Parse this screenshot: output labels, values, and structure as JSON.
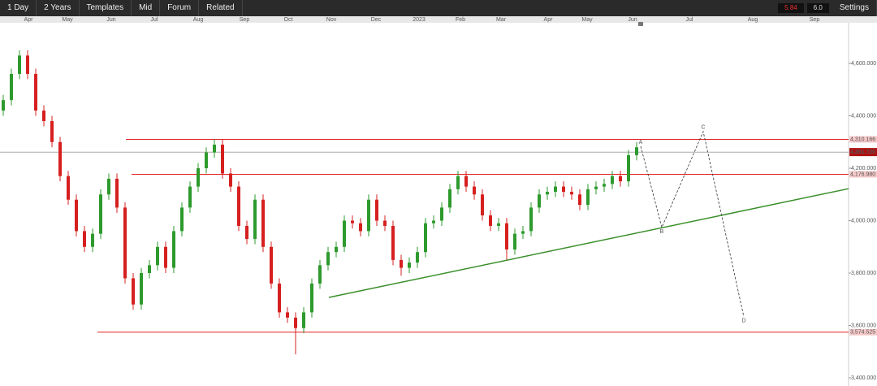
{
  "toolbar": {
    "buttons": [
      "1 Day",
      "2 Years",
      "Templates",
      "Mid",
      "Forum",
      "Related"
    ],
    "settings": "Settings",
    "readouts": [
      "5.84",
      "6.0"
    ]
  },
  "chart_data": {
    "type": "candlestick",
    "x_labels": [
      "Apr",
      "May",
      "Jun",
      "Jul",
      "Aug",
      "Sep",
      "Oct",
      "Nov",
      "Dec",
      "2023",
      "Feb",
      "Mar",
      "Apr",
      "May",
      "Jun",
      "Jul",
      "Aug",
      "Sep"
    ],
    "ylim": [
      3369,
      4780
    ],
    "yticks": [
      {
        "value": 3400,
        "label": "3,400.000"
      },
      {
        "value": 3600,
        "label": "3,600.000"
      },
      {
        "value": 3800,
        "label": "3,800.000"
      },
      {
        "value": 4000,
        "label": "4,000.000"
      },
      {
        "value": 4200,
        "label": "4,200.000"
      },
      {
        "value": 4400,
        "label": "4,400.000"
      },
      {
        "value": 4600,
        "label": "4,600.000"
      }
    ],
    "up_color": "#2e9a2e",
    "down_color": "#d62020",
    "open": [
      4420,
      4460,
      4560,
      4630,
      4560,
      4420,
      4380,
      4300,
      4170,
      4080,
      3960,
      3900,
      3950,
      4100,
      4160,
      4050,
      3780,
      3680,
      3800,
      3830,
      3900,
      3820,
      3960,
      4050,
      4130,
      4200,
      4260,
      4290,
      4180,
      4130,
      3980,
      3930,
      4080,
      3900,
      3760,
      3650,
      3630,
      3590,
      3650,
      3760,
      3830,
      3880,
      3900,
      4000,
      3990,
      3960,
      4080,
      4000,
      3980,
      3850,
      3820,
      3840,
      3880,
      3990,
      4000,
      4050,
      4120,
      4170,
      4130,
      4100,
      4020,
      3980,
      3990,
      3890,
      3950,
      3960,
      4050,
      4100,
      4110,
      4130,
      4110,
      4100,
      4060,
      4120,
      4130,
      4140,
      4170,
      4150,
      4250
    ],
    "high": [
      4480,
      4580,
      4650,
      4650,
      4580,
      4440,
      4400,
      4320,
      4190,
      4100,
      3980,
      3970,
      4120,
      4180,
      4180,
      4070,
      3800,
      3820,
      3850,
      3920,
      3920,
      3980,
      4070,
      4150,
      4220,
      4280,
      4310,
      4310,
      4200,
      4150,
      4000,
      4100,
      4100,
      3920,
      3780,
      3670,
      3650,
      3670,
      3780,
      3850,
      3900,
      3920,
      4020,
      4020,
      4010,
      4100,
      4100,
      4020,
      4000,
      3870,
      3860,
      3900,
      4010,
      4020,
      4070,
      4140,
      4190,
      4190,
      4150,
      4120,
      4040,
      4010,
      4010,
      3970,
      3980,
      4070,
      4120,
      4130,
      4150,
      4150,
      4130,
      4120,
      4140,
      4150,
      4160,
      4190,
      4190,
      4270,
      4300
    ],
    "low": [
      4400,
      4440,
      4540,
      4540,
      4400,
      4360,
      4280,
      4150,
      4060,
      3940,
      3880,
      3880,
      3930,
      4080,
      4030,
      3760,
      3660,
      3660,
      3780,
      3810,
      3800,
      3800,
      3940,
      4030,
      4110,
      4180,
      4240,
      4160,
      4110,
      3960,
      3910,
      3910,
      3880,
      3740,
      3630,
      3610,
      3490,
      3570,
      3630,
      3740,
      3810,
      3860,
      3880,
      3970,
      3940,
      3940,
      3980,
      3960,
      3830,
      3790,
      3800,
      3820,
      3860,
      3970,
      3980,
      4030,
      4100,
      4110,
      4080,
      4000,
      3960,
      3960,
      3850,
      3870,
      3930,
      3940,
      4030,
      4080,
      4090,
      4090,
      4080,
      4040,
      4040,
      4100,
      4110,
      4120,
      4130,
      4130,
      4230
    ],
    "close": [
      4460,
      4560,
      4630,
      4560,
      4420,
      4380,
      4300,
      4170,
      4080,
      3960,
      3900,
      3950,
      4100,
      4160,
      4050,
      3780,
      3680,
      3800,
      3830,
      3900,
      3820,
      3960,
      4050,
      4130,
      4200,
      4260,
      4290,
      4180,
      4130,
      3980,
      3930,
      4080,
      3900,
      3760,
      3650,
      3630,
      3590,
      3650,
      3760,
      3830,
      3880,
      3900,
      4000,
      3990,
      3960,
      4080,
      4000,
      3980,
      3850,
      3820,
      3840,
      3880,
      3990,
      4000,
      4050,
      4120,
      4170,
      4130,
      4100,
      4020,
      3980,
      3990,
      3890,
      3950,
      3960,
      4050,
      4100,
      4110,
      4130,
      4110,
      4100,
      4060,
      4120,
      4130,
      4140,
      4170,
      4150,
      4250,
      4280
    ],
    "levels": [
      {
        "value": 4310.166,
        "label": "4,310.166",
        "color": "#e02020"
      },
      {
        "value": 4176.98,
        "label": "4,176.980",
        "color": "#e02020"
      },
      {
        "value": 3574.525,
        "label": "3,574.525",
        "color": "#e02020"
      }
    ],
    "current_price": {
      "value": 4261.72,
      "label": "4,261.720",
      "color": "#b01010"
    },
    "trendline": {
      "values": [
        3707,
        4122
      ],
      "color": "#3a8f2a"
    },
    "projection": {
      "values": [
        4284,
        3974,
        4340,
        3633
      ],
      "labels": [
        "A",
        "B",
        "C",
        "D"
      ]
    }
  }
}
